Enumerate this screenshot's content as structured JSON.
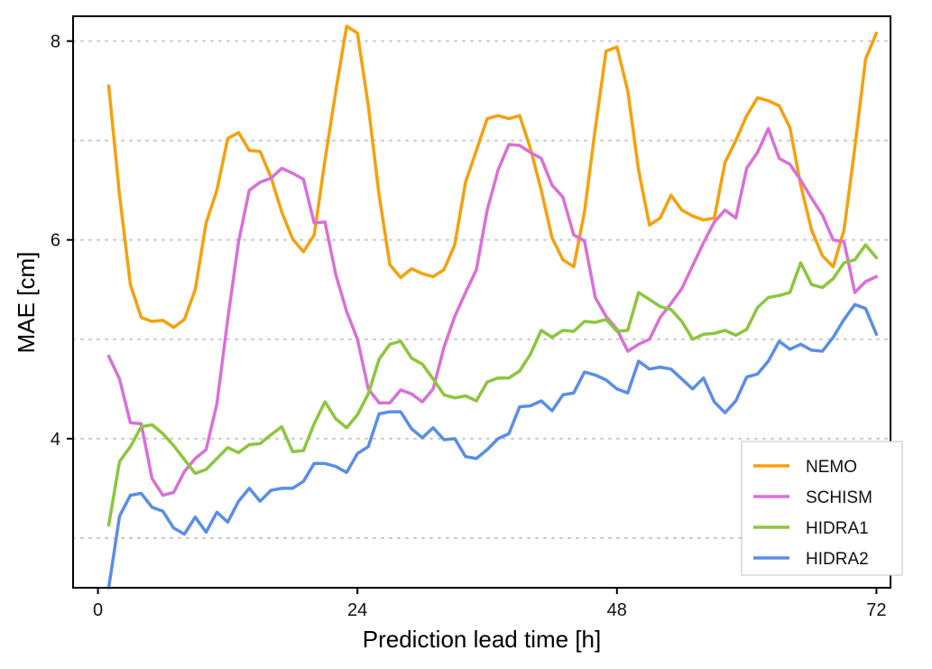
{
  "chart_data": {
    "type": "line",
    "title": "",
    "xlabel": "Prediction lead time [h]",
    "ylabel": "MAE [cm]",
    "xlim": [
      -2.3,
      73.3
    ],
    "ylim": [
      2.5,
      8.25
    ],
    "xticks": [
      0,
      24,
      48,
      72
    ],
    "xtick_labels": [
      "0",
      "24",
      "48",
      "72"
    ],
    "yticks": [
      4,
      6,
      8
    ],
    "ytick_labels": [
      "4",
      "6",
      "8"
    ],
    "grid": "horizontal dotted at 3, 4, 5, 6, 7, 8",
    "legend_position": "bottom-right",
    "x": [
      1,
      2,
      3,
      4,
      5,
      6,
      7,
      8,
      9,
      10,
      11,
      12,
      13,
      14,
      15,
      16,
      17,
      18,
      19,
      20,
      21,
      22,
      23,
      24,
      25,
      26,
      27,
      28,
      29,
      30,
      31,
      32,
      33,
      34,
      35,
      36,
      37,
      38,
      39,
      40,
      41,
      42,
      43,
      44,
      45,
      46,
      47,
      48,
      49,
      50,
      51,
      52,
      53,
      54,
      55,
      56,
      57,
      58,
      59,
      60,
      61,
      62,
      63,
      64,
      65,
      66,
      67,
      68,
      69,
      70,
      71,
      72
    ],
    "series": [
      {
        "name": "NEMO",
        "color": "#f5a10d",
        "values": [
          7.55,
          6.45,
          5.55,
          5.22,
          5.18,
          5.19,
          5.12,
          5.2,
          5.5,
          6.17,
          6.5,
          7.02,
          7.08,
          6.9,
          6.89,
          6.63,
          6.28,
          6.01,
          5.88,
          6.05,
          6.8,
          7.5,
          8.15,
          8.08,
          7.35,
          6.45,
          5.75,
          5.62,
          5.71,
          5.66,
          5.63,
          5.7,
          5.95,
          6.58,
          6.9,
          7.22,
          7.25,
          7.22,
          7.25,
          6.92,
          6.5,
          6.02,
          5.8,
          5.73,
          6.28,
          7.12,
          7.9,
          7.94,
          7.5,
          6.7,
          6.15,
          6.22,
          6.45,
          6.3,
          6.24,
          6.2,
          6.22,
          6.78,
          7.0,
          7.25,
          7.43,
          7.4,
          7.35,
          7.13,
          6.55,
          6.1,
          5.84,
          5.73,
          6.1,
          6.93,
          7.82,
          8.08
        ]
      },
      {
        "name": "SCHISM",
        "color": "#da70d6",
        "values": [
          4.83,
          4.6,
          4.16,
          4.15,
          3.6,
          3.43,
          3.46,
          3.67,
          3.8,
          3.89,
          4.35,
          5.2,
          5.98,
          6.5,
          6.58,
          6.62,
          6.72,
          6.67,
          6.61,
          6.17,
          6.18,
          5.65,
          5.28,
          5.0,
          4.5,
          4.36,
          4.36,
          4.49,
          4.45,
          4.37,
          4.5,
          4.92,
          5.23,
          5.47,
          5.7,
          6.3,
          6.7,
          6.96,
          6.95,
          6.88,
          6.82,
          6.55,
          6.43,
          6.05,
          5.99,
          5.42,
          5.23,
          5.1,
          4.88,
          4.95,
          5.0,
          5.22,
          5.36,
          5.51,
          5.74,
          5.97,
          6.18,
          6.3,
          6.22,
          6.72,
          6.88,
          7.12,
          6.82,
          6.76,
          6.6,
          6.42,
          6.25,
          6.0,
          5.98,
          5.47,
          5.58,
          5.63
        ]
      },
      {
        "name": "HIDRA1",
        "color": "#8cc63e",
        "values": [
          3.13,
          3.77,
          3.92,
          4.12,
          4.14,
          4.05,
          3.93,
          3.79,
          3.65,
          3.69,
          3.8,
          3.91,
          3.86,
          3.94,
          3.95,
          4.04,
          4.12,
          3.87,
          3.88,
          4.15,
          4.37,
          4.2,
          4.11,
          4.24,
          4.45,
          4.8,
          4.95,
          4.98,
          4.81,
          4.75,
          4.6,
          4.44,
          4.41,
          4.43,
          4.38,
          4.57,
          4.61,
          4.61,
          4.68,
          4.85,
          5.09,
          5.02,
          5.09,
          5.08,
          5.18,
          5.17,
          5.2,
          5.08,
          5.09,
          5.47,
          5.4,
          5.33,
          5.3,
          5.18,
          5.0,
          5.05,
          5.06,
          5.09,
          5.04,
          5.1,
          5.32,
          5.42,
          5.44,
          5.47,
          5.77,
          5.55,
          5.52,
          5.61,
          5.77,
          5.8,
          5.95,
          5.82
        ]
      },
      {
        "name": "HIDRA2",
        "color": "#5a8ee6",
        "values": [
          2.5,
          3.22,
          3.43,
          3.45,
          3.31,
          3.27,
          3.1,
          3.04,
          3.21,
          3.06,
          3.26,
          3.16,
          3.37,
          3.5,
          3.37,
          3.48,
          3.5,
          3.5,
          3.57,
          3.75,
          3.75,
          3.72,
          3.66,
          3.85,
          3.92,
          4.25,
          4.27,
          4.27,
          4.1,
          4.01,
          4.11,
          3.99,
          4.0,
          3.82,
          3.8,
          3.89,
          4.0,
          4.05,
          4.32,
          4.33,
          4.38,
          4.28,
          4.44,
          4.46,
          4.67,
          4.64,
          4.59,
          4.5,
          4.46,
          4.78,
          4.7,
          4.72,
          4.7,
          4.6,
          4.5,
          4.61,
          4.37,
          4.26,
          4.38,
          4.62,
          4.65,
          4.78,
          4.98,
          4.9,
          4.95,
          4.89,
          4.88,
          5.02,
          5.2,
          5.35,
          5.31,
          5.05
        ]
      }
    ]
  }
}
